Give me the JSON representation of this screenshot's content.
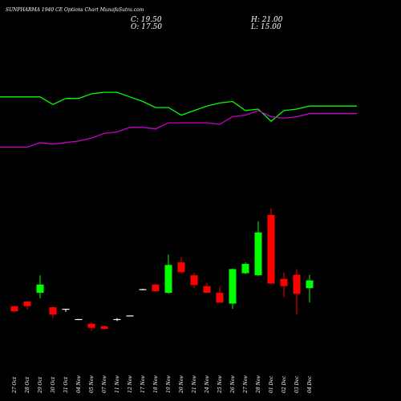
{
  "header": {
    "title": "SUNPHARMA 1940 CE Options Chart MunafaSutra.com",
    "close": "C: 19.50",
    "high": "H: 21.00",
    "open": "O: 17.50",
    "low": "L: 15.00"
  },
  "colors": {
    "background": "#000000",
    "up": "#00ff00",
    "down": "#ff0000",
    "flat": "#ffffff",
    "line1": "#00ff00",
    "line2": "#cc00cc",
    "text": "#ffffff"
  },
  "chart_data": {
    "type": "candlestick",
    "x": [
      "27 Oct",
      "28 Oct",
      "29 Oct",
      "30 Oct",
      "31 Oct",
      "04 Nov",
      "05 Nov",
      "07 Nov",
      "11 Nov",
      "12 Nov",
      "17 Nov",
      "18 Nov",
      "19 Nov",
      "20 Nov",
      "21 Nov",
      "24 Nov",
      "25 Nov",
      "26 Nov",
      "27 Nov",
      "28 Nov",
      "01 Dec",
      "02 Dec",
      "03 Dec",
      "04 Dec"
    ],
    "open": [
      7.5,
      8.4,
      10.1,
      7.3,
      6.9,
      5.0,
      4.1,
      3.6,
      4.9,
      5.7,
      10.8,
      11.7,
      10.1,
      16.0,
      13.5,
      11.4,
      10.1,
      8.0,
      13.9,
      13.5,
      25.2,
      12.8,
      13.6,
      11.0
    ],
    "high": [
      7.6,
      8.4,
      13.5,
      7.4,
      6.9,
      5.0,
      4.4,
      3.7,
      5.2,
      5.7,
      10.9,
      11.8,
      17.5,
      17.0,
      14.0,
      12.0,
      11.3,
      14.8,
      16.0,
      24.0,
      26.5,
      14.0,
      14.7,
      13.6
    ],
    "low": [
      6.3,
      6.9,
      9.0,
      5.2,
      6.4,
      4.8,
      2.7,
      2.9,
      4.6,
      5.6,
      10.7,
      10.4,
      9.9,
      13.8,
      11.0,
      10.5,
      8.2,
      7.0,
      13.7,
      13.3,
      11.8,
      9.3,
      5.9,
      8.2
    ],
    "close": [
      6.5,
      7.5,
      11.7,
      5.9,
      7.0,
      4.9,
      3.3,
      3.1,
      5.0,
      5.7,
      10.8,
      10.4,
      15.5,
      14.1,
      11.6,
      10.1,
      8.2,
      14.7,
      15.7,
      21.8,
      11.9,
      11.4,
      9.9,
      12.5
    ],
    "series": [
      {
        "values": [
          68,
          68,
          68,
          63,
          67,
          67,
          70,
          71,
          71,
          68,
          65,
          61,
          61,
          56,
          59,
          62,
          64,
          65,
          59,
          60,
          52,
          59,
          60,
          62
        ]
      },
      {
        "values": [
          35,
          35,
          38,
          37,
          38,
          39,
          41,
          44,
          45,
          48,
          48,
          47,
          51,
          51,
          51,
          51,
          50,
          55,
          56,
          59,
          55,
          54,
          55,
          57
        ]
      }
    ],
    "ylim": [
      0,
      100
    ],
    "grid": false
  }
}
